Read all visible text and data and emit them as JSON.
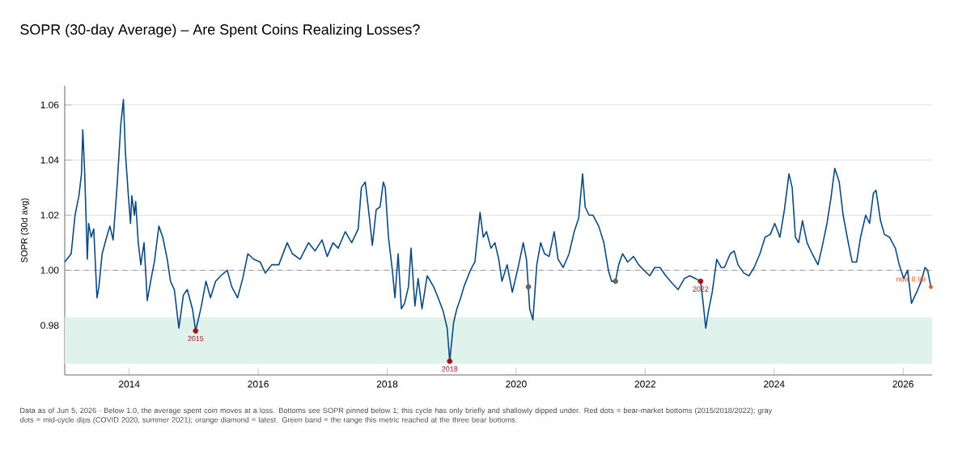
{
  "chart_data": {
    "type": "line",
    "title": "SOPR (30-day Average) – Are Spent Coins Realizing Losses?",
    "ylabel": "SOPR (30d avg)",
    "xlim": [
      2013.0,
      2026.45
    ],
    "xticks": [
      2014,
      2016,
      2018,
      2020,
      2022,
      2024,
      2026
    ],
    "ylim": [
      0.962,
      1.067
    ],
    "yticks": [
      0.98,
      {
        "value": 1.0,
        "label": "1.00"
      },
      1.02,
      1.04,
      1.06
    ],
    "grid": "y",
    "ref_lines": [
      {
        "axis": "y",
        "value": 1.0,
        "color": "#999999",
        "line_style": "dashed"
      }
    ],
    "bands": [
      {
        "axis": "y",
        "from": 0.966,
        "to": 0.983,
        "color": "#dff2ec"
      }
    ],
    "annotations": [
      {
        "text": "2015",
        "x": 2015.03,
        "y": 0.978
      },
      {
        "text": "2018",
        "x": 2018.97,
        "y": 0.967
      },
      {
        "text": "2022",
        "x": 2022.86,
        "y": 0.996
      },
      {
        "text": "now 0.99",
        "x": 2026.43,
        "y": 0.994
      },
      "Data as of Jun 5, 2026 · Below 1.0, the average spent coin moves at a loss. Bottoms see SOPR pinned below 1; this cycle has only briefly and shallowly dipped under. Red dots = bear-market bottoms (2015/2018/2022); gray dots = mid-cycle dips (COVID 2020, summer 2021); orange diamond = latest. Green band = the range this metric reached at the three bear bottoms."
    ],
    "series": [
      {
        "type": "line",
        "color": "#0b4a80",
        "x": [
          2013.0,
          2013.1,
          2013.16,
          2013.22,
          2013.26,
          2013.28,
          2013.31,
          2013.35,
          2013.37,
          2013.41,
          2013.45,
          2013.5,
          2013.53,
          2013.58,
          2013.65,
          2013.7,
          2013.75,
          2013.81,
          2013.87,
          2013.91,
          2013.94,
          2013.99,
          2014.02,
          2014.04,
          2014.08,
          2014.1,
          2014.14,
          2014.18,
          2014.23,
          2014.28,
          2014.34,
          2014.39,
          2014.46,
          2014.52,
          2014.59,
          2014.64,
          2014.7,
          2014.77,
          2014.84,
          2014.9,
          2014.98,
          2015.03,
          2015.11,
          2015.19,
          2015.26,
          2015.34,
          2015.42,
          2015.52,
          2015.59,
          2015.68,
          2015.76,
          2015.84,
          2015.93,
          2016.03,
          2016.11,
          2016.21,
          2016.32,
          2016.45,
          2016.53,
          2016.65,
          2016.78,
          2016.88,
          2016.99,
          2017.07,
          2017.16,
          2017.24,
          2017.35,
          2017.45,
          2017.55,
          2017.6,
          2017.66,
          2017.72,
          2017.77,
          2017.83,
          2017.89,
          2017.94,
          2017.97,
          2018.02,
          2018.08,
          2018.12,
          2018.17,
          2018.22,
          2018.27,
          2018.33,
          2018.37,
          2018.43,
          2018.48,
          2018.54,
          2018.62,
          2018.72,
          2018.79,
          2018.87,
          2018.93,
          2018.97,
          2019.03,
          2019.08,
          2019.14,
          2019.19,
          2019.29,
          2019.36,
          2019.44,
          2019.49,
          2019.54,
          2019.61,
          2019.67,
          2019.73,
          2019.78,
          2019.86,
          2019.94,
          2020.04,
          2020.11,
          2020.16,
          2020.21,
          2020.26,
          2020.32,
          2020.38,
          2020.44,
          2020.51,
          2020.59,
          2020.65,
          2020.73,
          2020.82,
          2020.9,
          2020.97,
          2021.03,
          2021.07,
          2021.13,
          2021.19,
          2021.28,
          2021.36,
          2021.43,
          2021.48,
          2021.54,
          2021.59,
          2021.65,
          2021.73,
          2021.82,
          2021.9,
          2021.98,
          2022.07,
          2022.15,
          2022.23,
          2022.32,
          2022.43,
          2022.51,
          2022.61,
          2022.69,
          2022.78,
          2022.86,
          2022.9,
          2022.94,
          2022.98,
          2023.04,
          2023.11,
          2023.18,
          2023.23,
          2023.32,
          2023.38,
          2023.44,
          2023.53,
          2023.61,
          2023.69,
          2023.78,
          2023.86,
          2023.94,
          2024.01,
          2024.09,
          2024.16,
          2024.23,
          2024.28,
          2024.33,
          2024.38,
          2024.44,
          2024.51,
          2024.59,
          2024.68,
          2024.74,
          2024.82,
          2024.88,
          2024.94,
          2025.01,
          2025.07,
          2025.15,
          2025.21,
          2025.28,
          2025.34,
          2025.42,
          2025.48,
          2025.54,
          2025.58,
          2025.65,
          2025.71,
          2025.79,
          2025.88,
          2025.94,
          2026.01,
          2026.07,
          2026.13,
          2026.21,
          2026.28,
          2026.34,
          2026.38,
          2026.43
        ],
        "values": [
          1.003,
          1.006,
          1.02,
          1.027,
          1.035,
          1.051,
          1.035,
          1.004,
          1.017,
          1.012,
          1.015,
          0.99,
          0.994,
          1.006,
          1.012,
          1.016,
          1.011,
          1.03,
          1.053,
          1.062,
          1.043,
          1.026,
          1.017,
          1.027,
          1.02,
          1.025,
          1.01,
          1.002,
          1.01,
          0.989,
          0.997,
          1.003,
          1.016,
          1.012,
          1.004,
          0.996,
          0.993,
          0.979,
          0.991,
          0.993,
          0.986,
          0.978,
          0.986,
          0.996,
          0.99,
          0.996,
          0.998,
          1.0,
          0.994,
          0.99,
          0.997,
          1.006,
          1.004,
          1.003,
          0.999,
          1.002,
          1.002,
          1.01,
          1.006,
          1.004,
          1.01,
          1.007,
          1.011,
          1.005,
          1.01,
          1.008,
          1.014,
          1.01,
          1.015,
          1.03,
          1.032,
          1.02,
          1.009,
          1.022,
          1.023,
          1.032,
          1.03,
          1.012,
          1.0,
          0.99,
          1.006,
          0.986,
          0.988,
          0.994,
          1.008,
          0.987,
          0.997,
          0.986,
          0.998,
          0.994,
          0.99,
          0.985,
          0.979,
          0.967,
          0.981,
          0.986,
          0.99,
          0.994,
          1.0,
          1.003,
          1.021,
          1.012,
          1.014,
          1.008,
          1.01,
          1.004,
          0.996,
          1.002,
          0.992,
          1.002,
          1.01,
          1.004,
          0.986,
          0.982,
          1.002,
          1.01,
          1.006,
          1.005,
          1.014,
          1.004,
          1.001,
          1.006,
          1.014,
          1.019,
          1.035,
          1.023,
          1.02,
          1.02,
          1.016,
          1.01,
          1.0,
          0.996,
          0.996,
          1.002,
          1.006,
          1.003,
          1.005,
          1.002,
          1.0,
          0.998,
          1.001,
          1.001,
          0.998,
          0.995,
          0.993,
          0.997,
          0.998,
          0.997,
          0.996,
          0.988,
          0.979,
          0.985,
          0.992,
          1.004,
          1.001,
          1.001,
          1.006,
          1.007,
          1.002,
          0.999,
          0.998,
          1.001,
          1.006,
          1.012,
          1.013,
          1.017,
          1.012,
          1.022,
          1.035,
          1.03,
          1.012,
          1.01,
          1.018,
          1.01,
          1.006,
          1.002,
          1.008,
          1.017,
          1.026,
          1.037,
          1.032,
          1.02,
          1.01,
          1.003,
          1.003,
          1.012,
          1.02,
          1.017,
          1.028,
          1.029,
          1.018,
          1.013,
          1.012,
          1.008,
          1.002,
          0.997,
          1.0,
          0.988,
          0.992,
          0.996,
          1.001,
          1.0,
          0.994
        ]
      },
      {
        "type": "scatter",
        "color": "#a50f15",
        "marker": "circle",
        "x": [
          2015.03,
          2018.97,
          2022.86
        ],
        "values": [
          0.978,
          0.967,
          0.996
        ]
      },
      {
        "type": "scatter",
        "color": "#666666",
        "marker": "circle",
        "x": [
          2020.19,
          2021.54
        ],
        "values": [
          0.994,
          0.996
        ]
      },
      {
        "type": "scatter",
        "color": "#e6550d",
        "marker": "diamond",
        "x": [
          2026.43
        ],
        "values": [
          0.994
        ]
      }
    ]
  }
}
